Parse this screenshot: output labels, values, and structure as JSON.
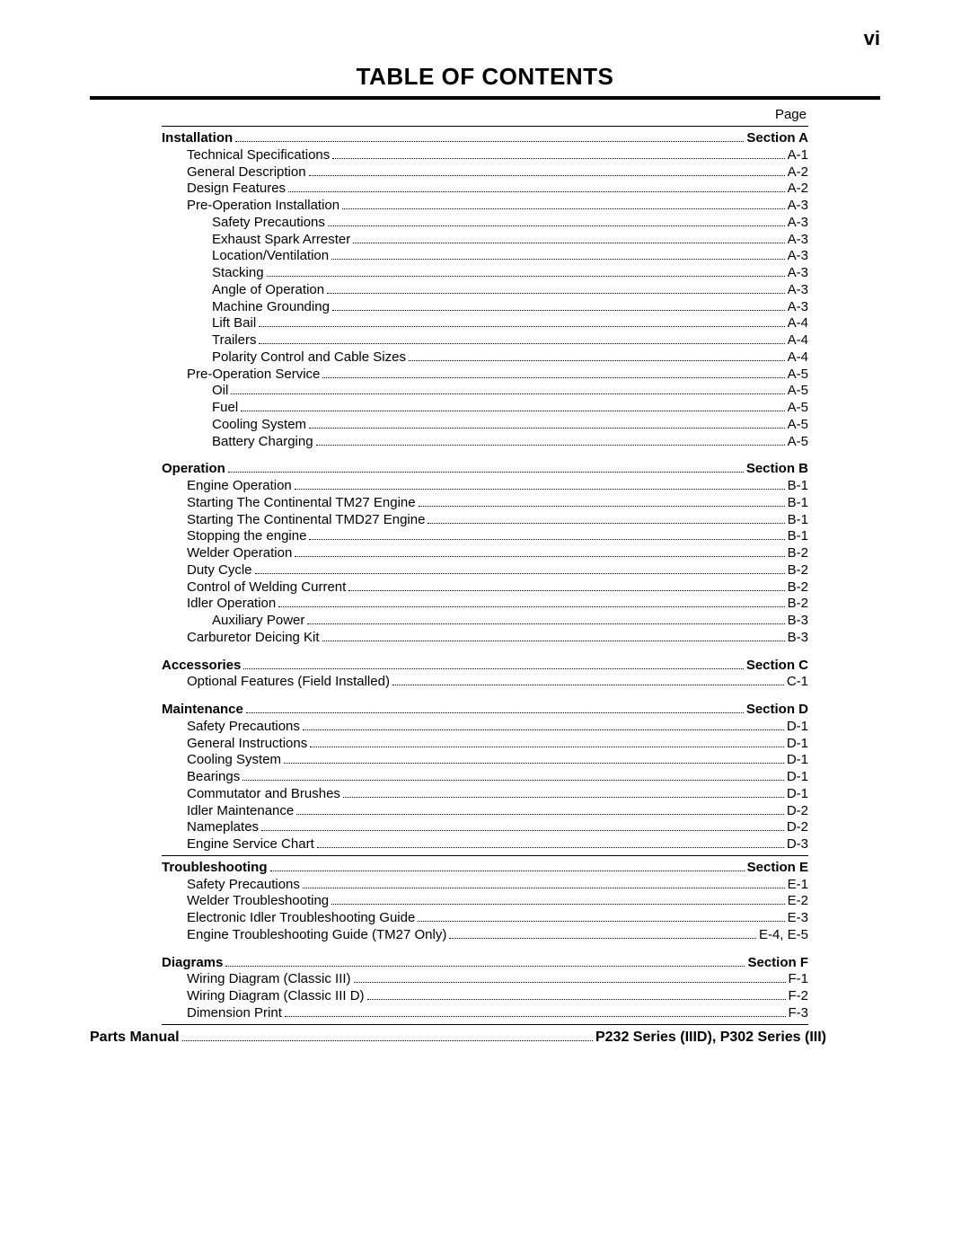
{
  "page_number_label": "vi",
  "title": "TABLE OF CONTENTS",
  "page_column_label": "Page",
  "font": {
    "family": "Arial",
    "title_size_pt": 20,
    "body_size_pt": 11
  },
  "colors": {
    "text": "#000000",
    "background": "#ffffff",
    "rule": "#000000"
  },
  "lines": [
    {
      "type": "rule"
    },
    {
      "label": "Installation",
      "page": "Section A",
      "indent": 0,
      "bold": true
    },
    {
      "label": "Technical Specifications",
      "page": "A-1",
      "indent": 1
    },
    {
      "label": "General Description",
      "page": "A-2",
      "indent": 1
    },
    {
      "label": "Design Features",
      "page": "A-2",
      "indent": 1
    },
    {
      "label": "Pre-Operation Installation",
      "page": "A-3",
      "indent": 1
    },
    {
      "label": "Safety Precautions",
      "page": "A-3",
      "indent": 2
    },
    {
      "label": "Exhaust Spark Arrester",
      "page": "A-3",
      "indent": 2
    },
    {
      "label": "Location/Ventilation",
      "page": "A-3",
      "indent": 2
    },
    {
      "label": "Stacking",
      "page": "A-3",
      "indent": 2
    },
    {
      "label": "Angle of Operation",
      "page": "A-3",
      "indent": 2
    },
    {
      "label": "Machine Grounding",
      "page": "A-3",
      "indent": 2
    },
    {
      "label": "Lift Bail",
      "page": "A-4",
      "indent": 2
    },
    {
      "label": "Trailers",
      "page": "A-4",
      "indent": 2
    },
    {
      "label": "Polarity Control and Cable Sizes",
      "page": "A-4",
      "indent": 2
    },
    {
      "label": "Pre-Operation Service",
      "page": "A-5",
      "indent": 1
    },
    {
      "label": "Oil",
      "page": "A-5",
      "indent": 2
    },
    {
      "label": "Fuel",
      "page": "A-5",
      "indent": 2
    },
    {
      "label": "Cooling System",
      "page": "A-5",
      "indent": 2
    },
    {
      "label": "Battery Charging",
      "page": "A-5",
      "indent": 2
    },
    {
      "type": "gap"
    },
    {
      "label": "Operation",
      "page": "Section B",
      "indent": 0,
      "bold": true
    },
    {
      "label": "Engine Operation",
      "page": "B-1",
      "indent": 1
    },
    {
      "label": "Starting The Continental TM27 Engine",
      "page": "B-1",
      "indent": 1
    },
    {
      "label": "Starting The Continental TMD27 Engine",
      "page": "B-1",
      "indent": 1
    },
    {
      "label": "Stopping the engine",
      "page": "B-1",
      "indent": 1
    },
    {
      "label": "Welder Operation",
      "page": "B-2",
      "indent": 1
    },
    {
      "label": "Duty Cycle",
      "page": "B-2",
      "indent": 1
    },
    {
      "label": "Control of Welding Current",
      "page": "B-2",
      "indent": 1
    },
    {
      "label": "Idler Operation",
      "page": "B-2",
      "indent": 1
    },
    {
      "label": "Auxiliary Power",
      "page": "B-3",
      "indent": 2
    },
    {
      "label": "Carburetor Deicing Kit",
      "page": "B-3",
      "indent": 1
    },
    {
      "type": "gap"
    },
    {
      "label": "Accessories",
      "page": "Section C",
      "indent": 0,
      "bold": true
    },
    {
      "label": "Optional Features (Field Installed)",
      "page": "C-1",
      "indent": 1
    },
    {
      "type": "gap"
    },
    {
      "label": "Maintenance",
      "page": "Section D",
      "indent": 0,
      "bold": true
    },
    {
      "label": "Safety Precautions",
      "page": "D-1",
      "indent": 1
    },
    {
      "label": "General Instructions",
      "page": "D-1",
      "indent": 1
    },
    {
      "label": "Cooling System",
      "page": "D-1",
      "indent": 1
    },
    {
      "label": "Bearings",
      "page": "D-1",
      "indent": 1
    },
    {
      "label": "Commutator and Brushes",
      "page": "D-1",
      "indent": 1
    },
    {
      "label": "Idler Maintenance",
      "page": "D-2",
      "indent": 1
    },
    {
      "label": "Nameplates",
      "page": "D-2",
      "indent": 1
    },
    {
      "label": "Engine Service Chart",
      "page": "D-3",
      "indent": 1
    },
    {
      "type": "rule"
    },
    {
      "label": "Troubleshooting",
      "page": "Section E",
      "indent": 0,
      "bold": true
    },
    {
      "label": "Safety Precautions",
      "page": "E-1",
      "indent": 1
    },
    {
      "label": "Welder Troubleshooting",
      "page": "E-2",
      "indent": 1
    },
    {
      "label": "Electronic Idler Troubleshooting Guide",
      "page": "E-3",
      "indent": 1
    },
    {
      "label": "Engine Troubleshooting Guide  (TM27 Only)",
      "page": "E-4, E-5",
      "indent": 1
    },
    {
      "type": "gap"
    },
    {
      "label": "Diagrams",
      "page": "Section F",
      "indent": 0,
      "bold": true
    },
    {
      "label": "Wiring Diagram (Classic III)",
      "page": "F-1",
      "indent": 1
    },
    {
      "label": "Wiring Diagram (Classic III D)",
      "page": "F-2",
      "indent": 1
    },
    {
      "label": "Dimension Print",
      "page": "F-3",
      "indent": 1
    },
    {
      "type": "rule"
    }
  ],
  "footer_line": {
    "label": "Parts Manual",
    "page": "P232 Series (IIID), P302 Series (III)",
    "indent": 0,
    "bold": true
  }
}
